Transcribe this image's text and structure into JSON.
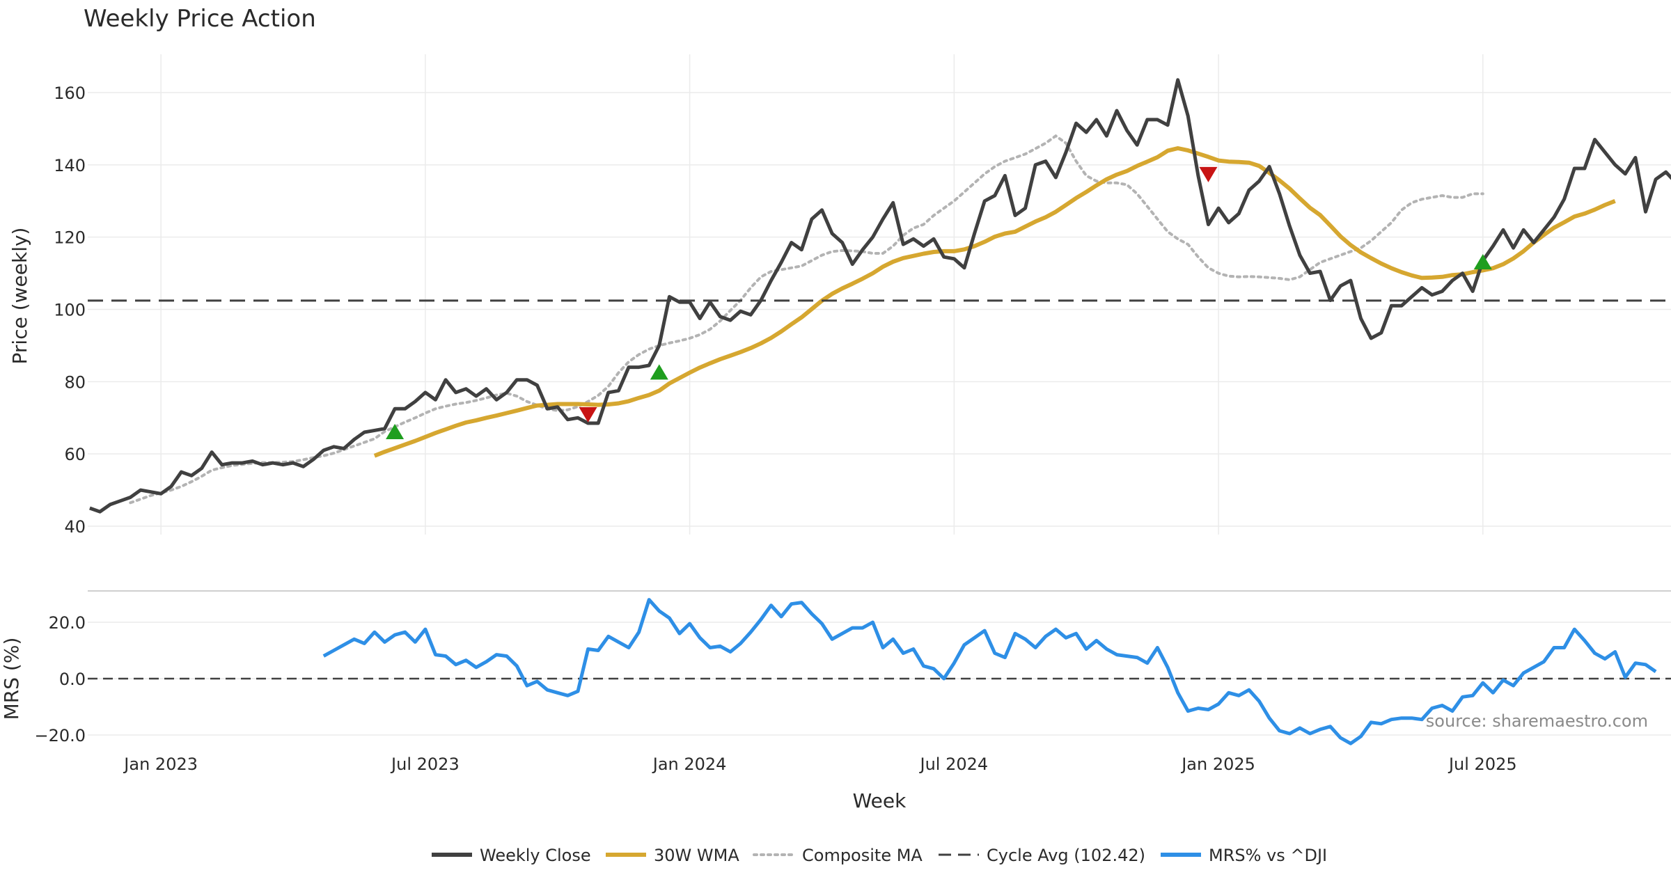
{
  "chart_data": [
    {
      "type": "line",
      "title": "Weekly Price Action",
      "xlabel": "",
      "ylabel": "Price (weekly)",
      "ylim": [
        37,
        170
      ],
      "yticks": [
        40,
        60,
        80,
        100,
        120,
        140,
        160
      ],
      "xticks": [
        {
          "label": "Jan 2023",
          "index": 7
        },
        {
          "label": "Jul 2023",
          "index": 33
        },
        {
          "label": "Jan 2024",
          "index": 59
        },
        {
          "label": "Jul 2024",
          "index": 85
        },
        {
          "label": "Jan 2025",
          "index": 111
        },
        {
          "label": "Jul 2025",
          "index": 137
        }
      ],
      "x_range": [
        -0.2,
        155.5
      ],
      "series": [
        {
          "name": "Weekly Close",
          "color": "#404040",
          "start": 0,
          "values": [
            45,
            44,
            46,
            47,
            48,
            50,
            49.5,
            49,
            51,
            55,
            54,
            56,
            60.5,
            57,
            57.5,
            57.5,
            58,
            57,
            57.5,
            57,
            57.5,
            56.5,
            58.5,
            61,
            62,
            61.5,
            64,
            66,
            66.5,
            67,
            72.5,
            72.5,
            74.5,
            77,
            75,
            80.5,
            77,
            78,
            76,
            78,
            75,
            77,
            80.5,
            80.5,
            79,
            72.5,
            73,
            69.5,
            70,
            68.5,
            68.5,
            77,
            77.5,
            84,
            84,
            84.5,
            90,
            103.5,
            102,
            102,
            97.5,
            102,
            98,
            97,
            99.5,
            98.5,
            102.5,
            108,
            113,
            118.5,
            116.5,
            125,
            127.5,
            121,
            118.5,
            112.5,
            116.5,
            120,
            125,
            129.5,
            118,
            119.5,
            117.5,
            119.5,
            114.5,
            114,
            111.5,
            121,
            130,
            131.5,
            137,
            126,
            128,
            140,
            141,
            136.5,
            143.5,
            151.5,
            149,
            152.5,
            148,
            155,
            149.5,
            145.5,
            152.5,
            152.5,
            151,
            163.5,
            153.5,
            137,
            123.5,
            128,
            124,
            126.5,
            133,
            135.5,
            139.5,
            132,
            123,
            115,
            110,
            110.5,
            102.5,
            106.5,
            108,
            97.5,
            92,
            93.5,
            101,
            101,
            103.5,
            106,
            104,
            105,
            108,
            110,
            105,
            113.5,
            117.5,
            122,
            117,
            122,
            118.5,
            122,
            125.5,
            130.5,
            139,
            139,
            147,
            143.5,
            140,
            137.5,
            142,
            127,
            136,
            138,
            135
          ]
        },
        {
          "name": "30W WMA",
          "color": "#d6a730",
          "start": 28,
          "values": [
            59.5,
            60.6,
            61.6,
            62.6,
            63.6,
            64.7,
            65.8,
            66.8,
            67.8,
            68.7,
            69.3,
            70,
            70.6,
            71.3,
            72,
            72.7,
            73.4,
            73.6,
            73.8,
            73.8,
            73.8,
            73.7,
            73.6,
            73.7,
            74,
            74.6,
            75.5,
            76.3,
            77.5,
            79.5,
            81,
            82.5,
            83.9,
            85.1,
            86.2,
            87.2,
            88.2,
            89.3,
            90.6,
            92.1,
            93.9,
            95.9,
            97.8,
            100.1,
            102.4,
            104.3,
            105.8,
            107.1,
            108.5,
            110,
            111.8,
            113.2,
            114.2,
            114.8,
            115.4,
            115.9,
            116.1,
            116.1,
            116.6,
            117.5,
            118.7,
            120.1,
            121,
            121.5,
            122.9,
            124.3,
            125.5,
            127,
            128.9,
            130.8,
            132.5,
            134.3,
            136,
            137.3,
            138.3,
            139.7,
            140.9,
            142.1,
            143.9,
            144.6,
            144,
            143.1,
            142.2,
            141.2,
            140.9,
            140.8,
            140.6,
            139.7,
            137.8,
            135.7,
            133.4,
            130.7,
            128.1,
            126.1,
            123.2,
            120.2,
            117.8,
            115.8,
            114.2,
            112.7,
            111.4,
            110.3,
            109.4,
            108.7,
            108.8,
            109,
            109.5,
            109.7,
            110.3,
            110.8,
            111.4,
            112.5,
            114.1,
            116.1,
            118.5,
            120.6,
            122.6,
            124.1,
            125.7,
            126.5,
            127.6,
            128.9,
            130
          ]
        },
        {
          "name": "Composite MA",
          "color": "#b3b3b3",
          "start": 4,
          "values": [
            46.5,
            47.5,
            48.5,
            49.2,
            50,
            51,
            52.3,
            53.8,
            55.5,
            56.2,
            56.8,
            57.1,
            57.4,
            57.6,
            57.6,
            57.7,
            57.9,
            58.4,
            59,
            59.5,
            60.2,
            61.2,
            62.2,
            63.2,
            64.2,
            66.2,
            67.5,
            68.8,
            70,
            71.3,
            72.5,
            73.2,
            73.8,
            74.2,
            74.8,
            75.5,
            76.3,
            76.8,
            76,
            74.5,
            73.5,
            72.5,
            72,
            72.2,
            73.1,
            74.5,
            76.2,
            78.7,
            82.5,
            85.5,
            87.5,
            89,
            90,
            90.7,
            91.3,
            92,
            93,
            94.5,
            96.8,
            99.7,
            102.5,
            106,
            109,
            110.5,
            111,
            111.5,
            112,
            113.5,
            115,
            116,
            116.3,
            116.2,
            116,
            115.5,
            115.5,
            117.5,
            120.5,
            122.5,
            123.5,
            126,
            128,
            130,
            132.5,
            135,
            137.5,
            139.5,
            141,
            142,
            143,
            144.5,
            146,
            148,
            146,
            141,
            137,
            135.5,
            135,
            135,
            134.5,
            132,
            128.5,
            125,
            121.5,
            119.5,
            118,
            114.5,
            111.5,
            110,
            109.2,
            109,
            109.1,
            109,
            108.8,
            108.6,
            108.2,
            109,
            111,
            113,
            114,
            115,
            116,
            117,
            119,
            121.5,
            124,
            127.5,
            129.5,
            130.5,
            131,
            131.5,
            131,
            131,
            132,
            132
          ]
        },
        {
          "name": "Cycle Avg (102.42)",
          "color": "#404040",
          "constant": 102.42
        }
      ],
      "markers": [
        {
          "index": 30,
          "value": 66,
          "kind": "up",
          "color": "#1f9e1f"
        },
        {
          "index": 49,
          "value": 71,
          "kind": "down",
          "color": "#c81414"
        },
        {
          "index": 56,
          "value": 82.5,
          "kind": "up",
          "color": "#1f9e1f"
        },
        {
          "index": 110,
          "value": 137.5,
          "kind": "down",
          "color": "#c81414"
        },
        {
          "index": 137,
          "value": 113,
          "kind": "up",
          "color": "#1f9e1f"
        }
      ],
      "legend": "bottom-center"
    },
    {
      "type": "line",
      "title": "",
      "xlabel": "Week",
      "ylabel": "MRS (%)",
      "ylim": [
        -25,
        32
      ],
      "yticks": [
        {
          "value": 20,
          "label": "20.0"
        },
        {
          "value": 0,
          "label": "0.0"
        },
        {
          "value": -20,
          "label": "−20.0"
        }
      ],
      "series": [
        {
          "name": "MRS% vs ^DJI",
          "color": "#2e8fe6",
          "start": 23,
          "values": [
            8,
            10,
            12,
            14,
            12.5,
            16.5,
            13,
            15.5,
            16.5,
            13,
            17.5,
            8.5,
            8,
            5,
            6.5,
            4,
            6,
            8.5,
            8,
            4.5,
            -2.5,
            -1,
            -4,
            -5,
            -6,
            -4.5,
            10.5,
            10,
            15,
            13,
            11,
            16.5,
            28,
            24,
            21.5,
            16,
            19.5,
            14.5,
            11,
            11.5,
            9.5,
            12.5,
            16.5,
            21,
            26,
            22,
            26.5,
            27,
            23,
            19.5,
            14,
            16,
            18,
            18,
            20,
            11,
            14,
            9,
            10.5,
            4.5,
            3.5,
            0,
            5.5,
            12,
            14.5,
            17,
            9,
            7.5,
            16,
            14,
            11,
            15,
            17.5,
            14.5,
            16,
            10.5,
            13.5,
            10.5,
            8.5,
            8,
            7.5,
            5.5,
            11,
            4,
            -5,
            -11.5,
            -10.5,
            -11,
            -9,
            -5,
            -6,
            -4,
            -8,
            -14,
            -18.5,
            -19.5,
            -17.5,
            -19.5,
            -18,
            -17,
            -21,
            -23,
            -20.5,
            -15.5,
            -16,
            -14.5,
            -14,
            -14,
            -14.5,
            -10.5,
            -9.5,
            -11.5,
            -6.5,
            -6,
            -1.5,
            -5,
            -0.5,
            -2.5,
            2,
            4,
            6,
            11,
            11,
            17.5,
            13.5,
            9,
            7,
            9.5,
            0.5,
            5.5,
            5,
            2.5
          ]
        },
        {
          "name": "zero",
          "color": "#404040",
          "constant": 0
        }
      ],
      "annotation": "source: sharemaestro.com"
    }
  ],
  "legend_items": [
    {
      "label": "Weekly Close",
      "color": "#404040",
      "style": "solid"
    },
    {
      "label": "30W WMA",
      "color": "#d6a730",
      "style": "solid"
    },
    {
      "label": "Composite MA",
      "color": "#b3b3b3",
      "style": "dotted"
    },
    {
      "label": "Cycle Avg (102.42)",
      "color": "#404040",
      "style": "dashed"
    },
    {
      "label": "MRS% vs ^DJI",
      "color": "#2e8fe6",
      "style": "solid"
    }
  ]
}
